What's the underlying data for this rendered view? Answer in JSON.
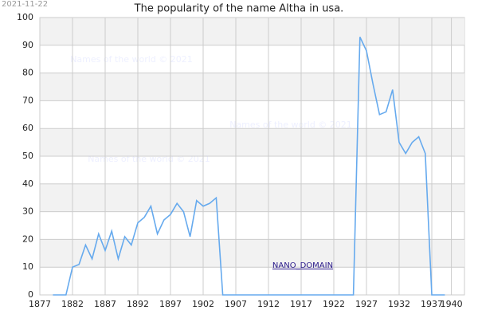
{
  "chart_data": {
    "type": "line",
    "title": "The popularity of the name Altha in usa.",
    "date_stamp": "2021-11-22",
    "watermarks": [
      "Names of the world © 2021",
      "Names of the world © 2021",
      "Names of the world © 2021"
    ],
    "domain_label": "NANO_DOMAIN",
    "x": [
      1879,
      1880,
      1881,
      1882,
      1883,
      1884,
      1885,
      1886,
      1887,
      1888,
      1889,
      1890,
      1891,
      1892,
      1893,
      1894,
      1895,
      1896,
      1897,
      1898,
      1899,
      1900,
      1901,
      1902,
      1903,
      1904,
      1905,
      1906,
      1907,
      1908,
      1909,
      1910,
      1911,
      1912,
      1913,
      1914,
      1915,
      1916,
      1917,
      1918,
      1919,
      1920,
      1921,
      1922,
      1923,
      1924,
      1925,
      1926,
      1927,
      1928,
      1929,
      1930,
      1931,
      1932,
      1933,
      1934,
      1935,
      1936,
      1937,
      1938,
      1939
    ],
    "series": [
      {
        "color": "#66aaee",
        "values": [
          0,
          0,
          0,
          10,
          11,
          18,
          13,
          22,
          16,
          23,
          13,
          21,
          18,
          26,
          28,
          32,
          22,
          27,
          29,
          33,
          30,
          21,
          34,
          32,
          33,
          35,
          0,
          0,
          0,
          0,
          0,
          0,
          0,
          0,
          0,
          0,
          0,
          0,
          0,
          0,
          0,
          0,
          0,
          0,
          0,
          0,
          0,
          93,
          88,
          76,
          65,
          66,
          74,
          55,
          51,
          55,
          57,
          51,
          0,
          0,
          0
        ]
      }
    ],
    "xlim": [
      1877,
      1942
    ],
    "xticks": [
      1877,
      1882,
      1887,
      1892,
      1897,
      1902,
      1907,
      1912,
      1917,
      1922,
      1927,
      1932,
      1937,
      1940
    ],
    "ylim": [
      0,
      100
    ],
    "yticks": [
      0,
      10,
      20,
      30,
      40,
      50,
      60,
      70,
      80,
      90,
      100
    ],
    "grid": true
  }
}
